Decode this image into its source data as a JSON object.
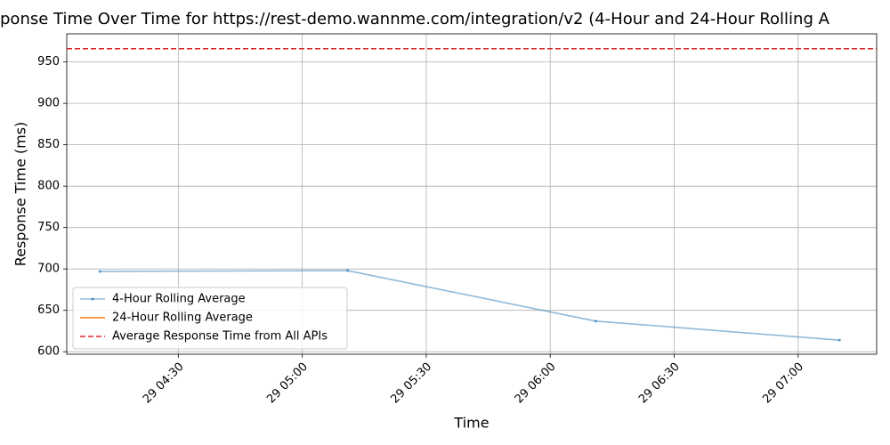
{
  "chart_data": {
    "type": "line",
    "title": "ponse Time Over Time for https://rest-demo.wannme.com/integration/v2 (4-Hour and 24-Hour Rolling A",
    "xlabel": "Time",
    "ylabel": "Response Time (ms)",
    "x": [
      "29 04:11",
      "29 05:11",
      "29 06:11",
      "29 07:10"
    ],
    "series": [
      {
        "name": "4-Hour Rolling Average",
        "color": "#1f77b4",
        "values": [
          697,
          698,
          637,
          614
        ]
      },
      {
        "name": "24-Hour Rolling Average",
        "color": "#ff7f0e",
        "values": [
          null,
          null,
          null,
          null
        ]
      }
    ],
    "hlines": [
      {
        "name": "Average Response Time from All APIs",
        "color": "#d62728",
        "value": 966
      }
    ],
    "xlim": [
      "29 04:03",
      "29 07:19"
    ],
    "xticks": [
      "29 04:30",
      "29 05:00",
      "29 05:30",
      "29 06:00",
      "29 06:30",
      "29 07:00"
    ],
    "ylim": [
      597,
      984
    ],
    "yticks": [
      600,
      650,
      700,
      750,
      800,
      850,
      900,
      950
    ],
    "grid": true,
    "legend": "lower left"
  }
}
